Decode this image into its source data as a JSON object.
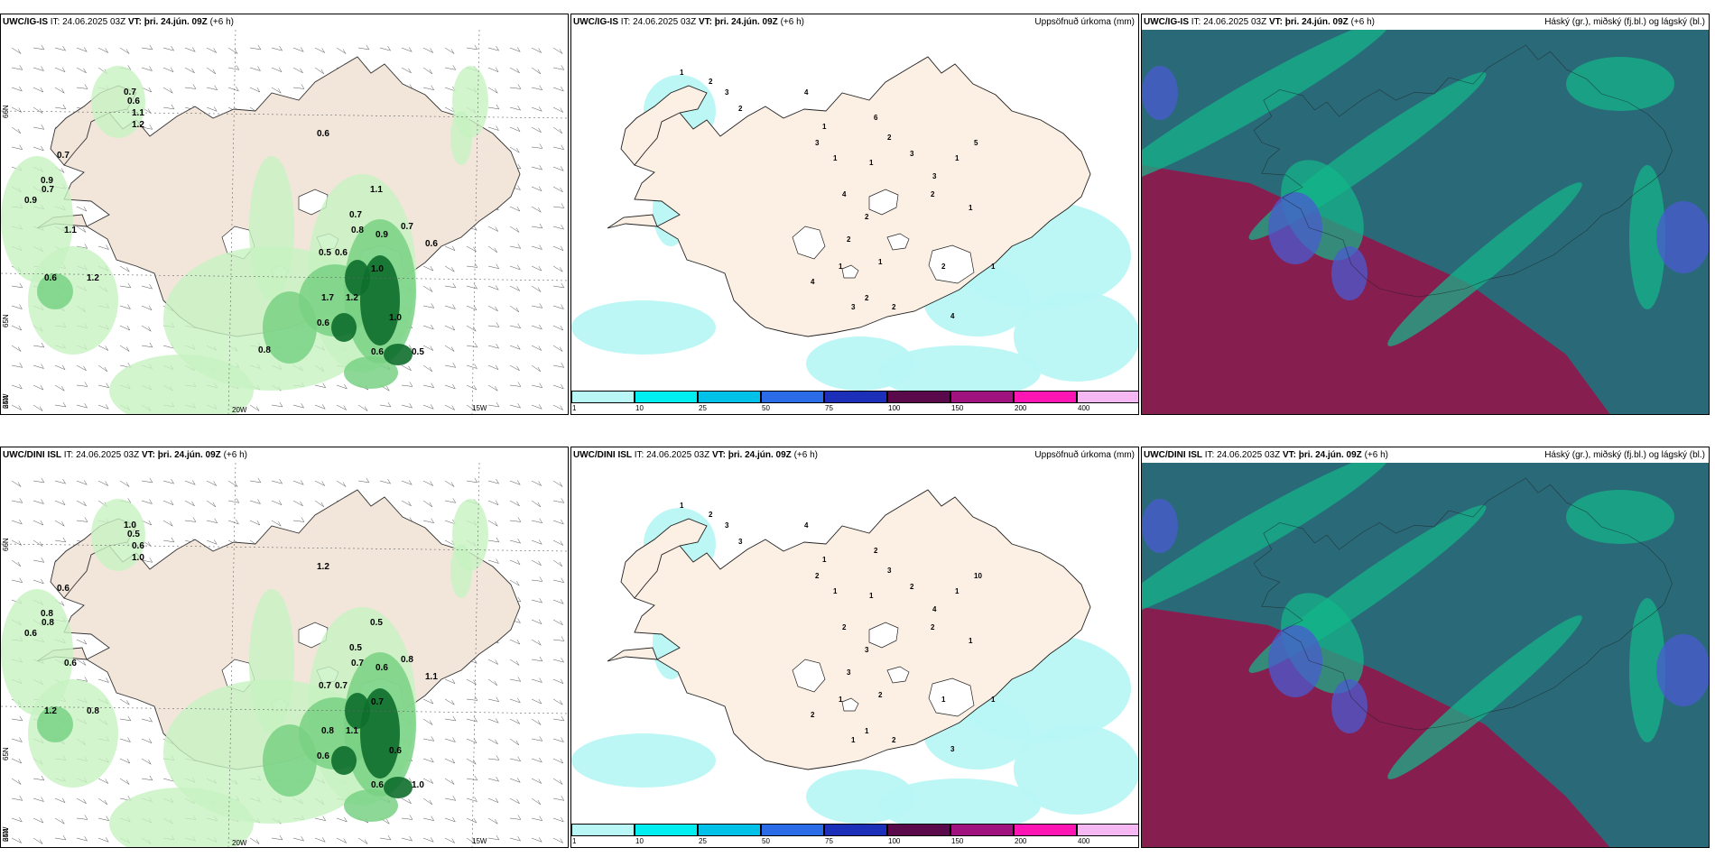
{
  "rows": [
    {
      "model": "UWC/IG-IS",
      "panels": [
        {
          "kind": "wind-precip",
          "it": "IT: 24.06.2025 03Z",
          "vt_label": "VT:",
          "vt": "þri. 24.jún. 09Z",
          "lead": "(+6 h)",
          "right": ""
        },
        {
          "kind": "accum",
          "it": "IT: 24.06.2025 03Z",
          "vt_label": "VT:",
          "vt": "þri. 24.jún. 09Z",
          "lead": "(+6 h)",
          "right": "Uppsöfnuð úrkoma (mm)"
        },
        {
          "kind": "cloud",
          "it": "IT: 24.06.2025 03Z",
          "vt_label": "VT:",
          "vt": "þri. 24.jún. 09Z",
          "lead": "(+6 h)",
          "right": "Háský (gr.), miðský (fj.bl.) og lágský (bl.)"
        }
      ],
      "precip_labels": [
        "0.7",
        "0.6",
        "1.1",
        "1.2",
        "0.7",
        "0.9",
        "0.7",
        "0.9",
        "1.1",
        "0.6",
        "1.1",
        "0.7",
        "0.7",
        "0.6",
        "0.9",
        "0.8",
        "0.6",
        "1.0",
        "1.2",
        "1.0",
        "0.5",
        "0.5",
        "1.7",
        "0.6",
        "0.6",
        "0.6",
        "1.2",
        "0.8"
      ],
      "accum_labels": [
        "1",
        "2",
        "3",
        "4",
        "2",
        "6",
        "1",
        "2",
        "3",
        "1",
        "3",
        "1",
        "1",
        "5",
        "3",
        "4",
        "2",
        "2",
        "1",
        "1",
        "4",
        "3",
        "2",
        "1",
        "2",
        "4",
        "2",
        "2",
        "1"
      ]
    },
    {
      "model": "UWC/DINI ISL",
      "panels": [
        {
          "kind": "wind-precip",
          "it": "IT: 24.06.2025 03Z",
          "vt_label": "VT:",
          "vt": "þri. 24.jún. 09Z",
          "lead": "(+6 h)",
          "right": ""
        },
        {
          "kind": "accum",
          "it": "IT: 24.06.2025 03Z",
          "vt_label": "VT:",
          "vt": "þri. 24.jún. 09Z",
          "lead": "(+6 h)",
          "right": "Uppsöfnuð úrkoma (mm)"
        },
        {
          "kind": "cloud",
          "it": "IT: 24.06.2025 03Z",
          "vt_label": "VT:",
          "vt": "þri. 24.jún. 09Z",
          "lead": "(+6 h)",
          "right": "Háský (gr.), miðský (fj.bl.) og lágský (bl.)"
        }
      ],
      "precip_labels": [
        "1.0",
        "0.5",
        "0.6",
        "1.0",
        "0.6",
        "0.8",
        "0.8",
        "0.6",
        "0.6",
        "1.2",
        "0.5",
        "0.5",
        "0.8",
        "1.1",
        "0.6",
        "0.7",
        "0.7",
        "0.7",
        "1.1",
        "0.6",
        "1.0",
        "0.7",
        "0.8",
        "0.6",
        "0.6",
        "1.2",
        "0.8"
      ],
      "accum_labels": [
        "1",
        "2",
        "3",
        "4",
        "3",
        "2",
        "1",
        "3",
        "2",
        "1",
        "2",
        "1",
        "1",
        "10",
        "4",
        "2",
        "3",
        "3",
        "2",
        "1",
        "2",
        "1",
        "2",
        "1",
        "1",
        "3",
        "2",
        "1",
        "1"
      ]
    }
  ],
  "lat_labels": [
    "66N",
    "65N",
    "64N"
  ],
  "lon_labels": [
    "25W",
    "20W",
    "15W"
  ],
  "colorbar": {
    "ticks": [
      "1",
      "10",
      "25",
      "50",
      "75",
      "100",
      "150",
      "200",
      "400"
    ],
    "colors": [
      "#b8f7f5",
      "#00eef0",
      "#00c2e8",
      "#2a6be8",
      "#1c2fb8",
      "#5a0a4a",
      "#a0127e",
      "#ff14b4",
      "#f5b8f2"
    ]
  },
  "colors": {
    "land": "#f2e6da",
    "land_accum": "#fcefe3",
    "ice": "#ffffff",
    "precip_light": "#c7f3c2",
    "precip_mid": "#79d184",
    "precip_heavy": "#0e6e2c",
    "accum": "#b8f7f5",
    "cloud_high": "#8b1a4e",
    "cloud_mid": "#2a6a78",
    "cloud_low": "#12b88a"
  }
}
